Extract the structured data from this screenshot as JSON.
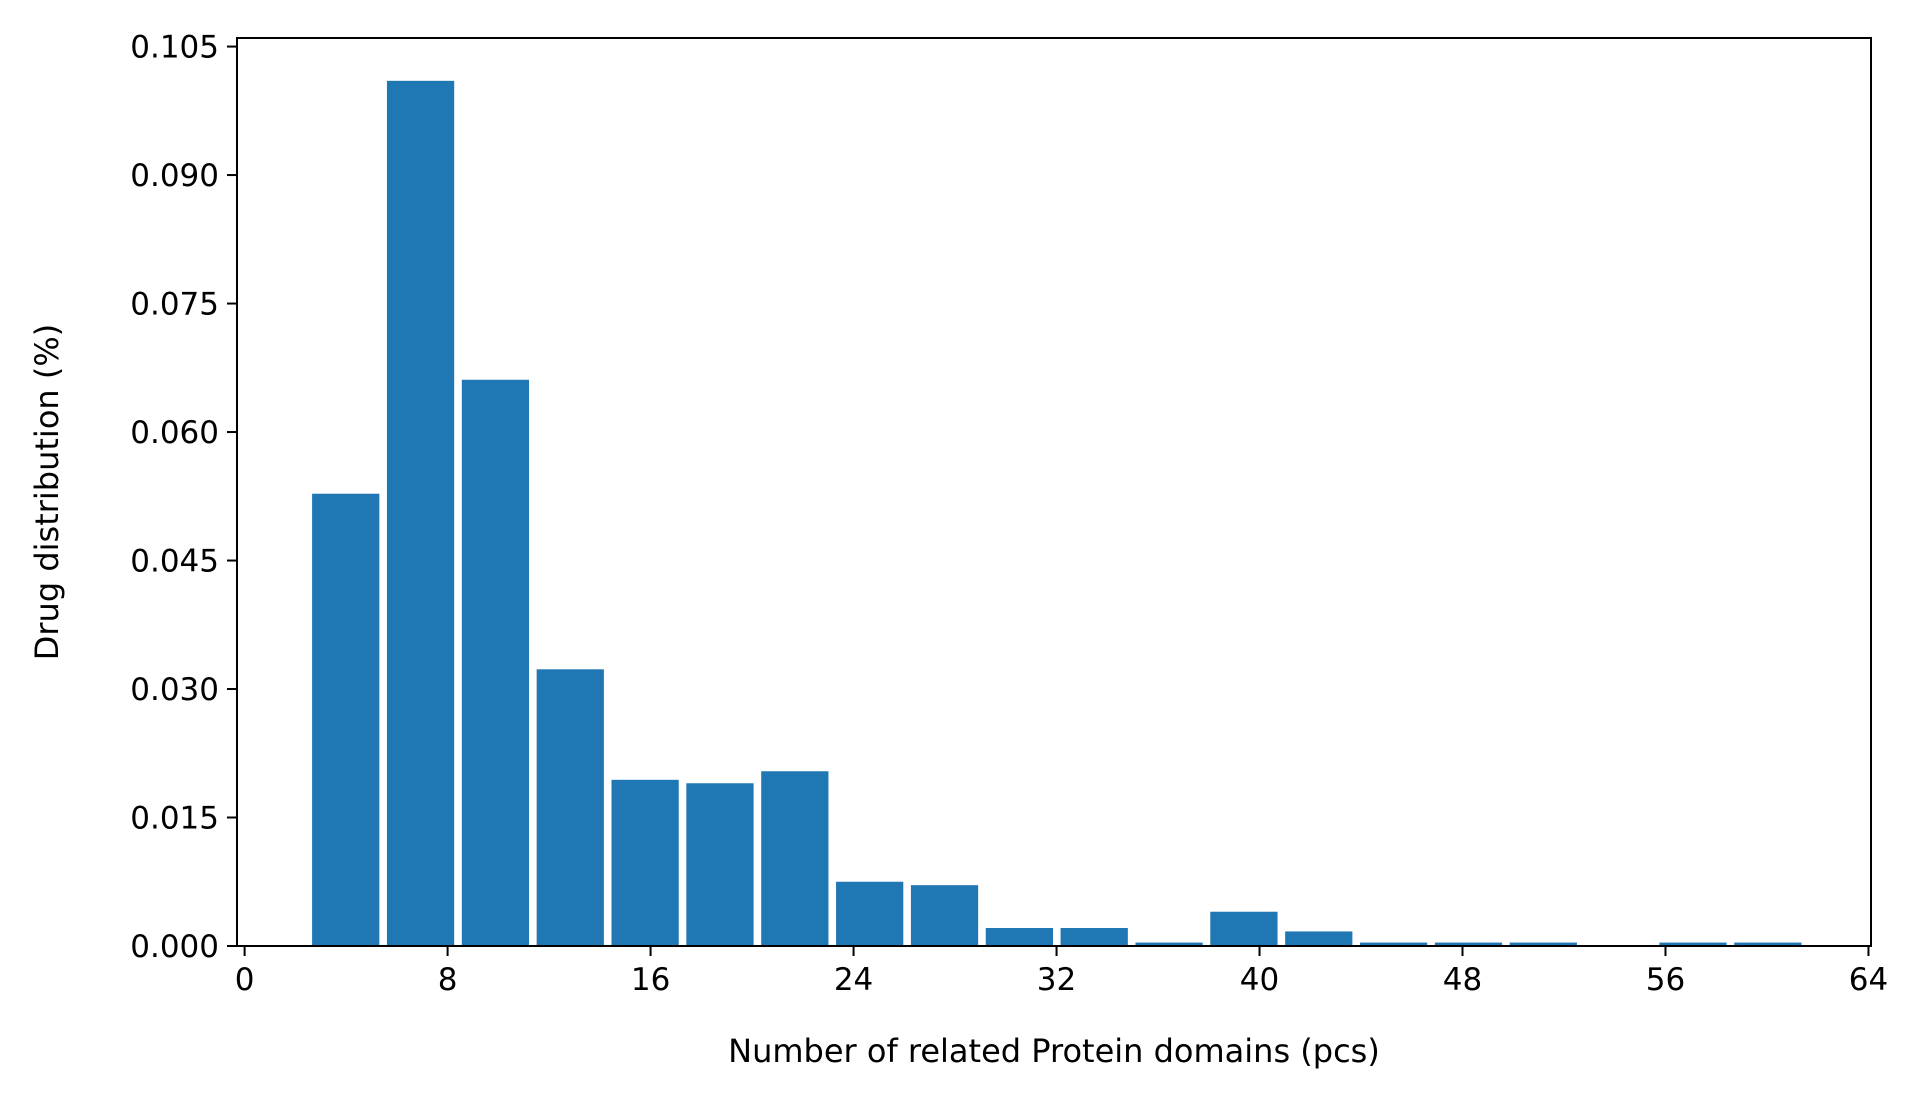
{
  "chart_data": {
    "type": "bar",
    "title": "",
    "xlabel": "Number of related Protein domains (pcs)",
    "ylabel": "Drug distribution (%)",
    "xlim": [
      -0.3,
      64.1
    ],
    "ylim": [
      0,
      0.106
    ],
    "bar_color": "#1f77b4",
    "grid": false,
    "legend": "none",
    "bins": [
      {
        "x0": 2.66,
        "x1": 5.31,
        "value": 0.0528
      },
      {
        "x0": 5.61,
        "x1": 8.26,
        "value": 0.101
      },
      {
        "x0": 8.56,
        "x1": 11.21,
        "value": 0.0661
      },
      {
        "x0": 11.51,
        "x1": 14.16,
        "value": 0.0323
      },
      {
        "x0": 14.46,
        "x1": 17.11,
        "value": 0.0194
      },
      {
        "x0": 17.41,
        "x1": 20.06,
        "value": 0.019
      },
      {
        "x0": 20.36,
        "x1": 23.01,
        "value": 0.0204
      },
      {
        "x0": 23.31,
        "x1": 25.96,
        "value": 0.0075
      },
      {
        "x0": 26.26,
        "x1": 28.91,
        "value": 0.0071
      },
      {
        "x0": 29.21,
        "x1": 31.86,
        "value": 0.0021
      },
      {
        "x0": 32.16,
        "x1": 34.81,
        "value": 0.0021
      },
      {
        "x0": 35.11,
        "x1": 37.76,
        "value": 0.0004
      },
      {
        "x0": 38.06,
        "x1": 40.71,
        "value": 0.004
      },
      {
        "x0": 41.01,
        "x1": 43.66,
        "value": 0.0017
      },
      {
        "x0": 43.96,
        "x1": 46.61,
        "value": 0.0004
      },
      {
        "x0": 46.91,
        "x1": 49.56,
        "value": 0.0004
      },
      {
        "x0": 49.86,
        "x1": 52.51,
        "value": 0.0004
      },
      {
        "x0": 52.81,
        "x1": 55.46,
        "value": 0.0
      },
      {
        "x0": 55.76,
        "x1": 58.41,
        "value": 0.0004
      },
      {
        "x0": 58.71,
        "x1": 61.36,
        "value": 0.0004
      }
    ],
    "xticks": [
      0,
      8,
      16,
      24,
      32,
      40,
      48,
      56,
      64
    ],
    "xtick_labels": [
      "0",
      "8",
      "16",
      "24",
      "32",
      "40",
      "48",
      "56",
      "64"
    ],
    "yticks": [
      0,
      0.015,
      0.03,
      0.045,
      0.06,
      0.075,
      0.09,
      0.105
    ],
    "ytick_labels": [
      "0.000",
      "0.015",
      "0.030",
      "0.045",
      "0.060",
      "0.075",
      "0.090",
      "0.105"
    ]
  }
}
